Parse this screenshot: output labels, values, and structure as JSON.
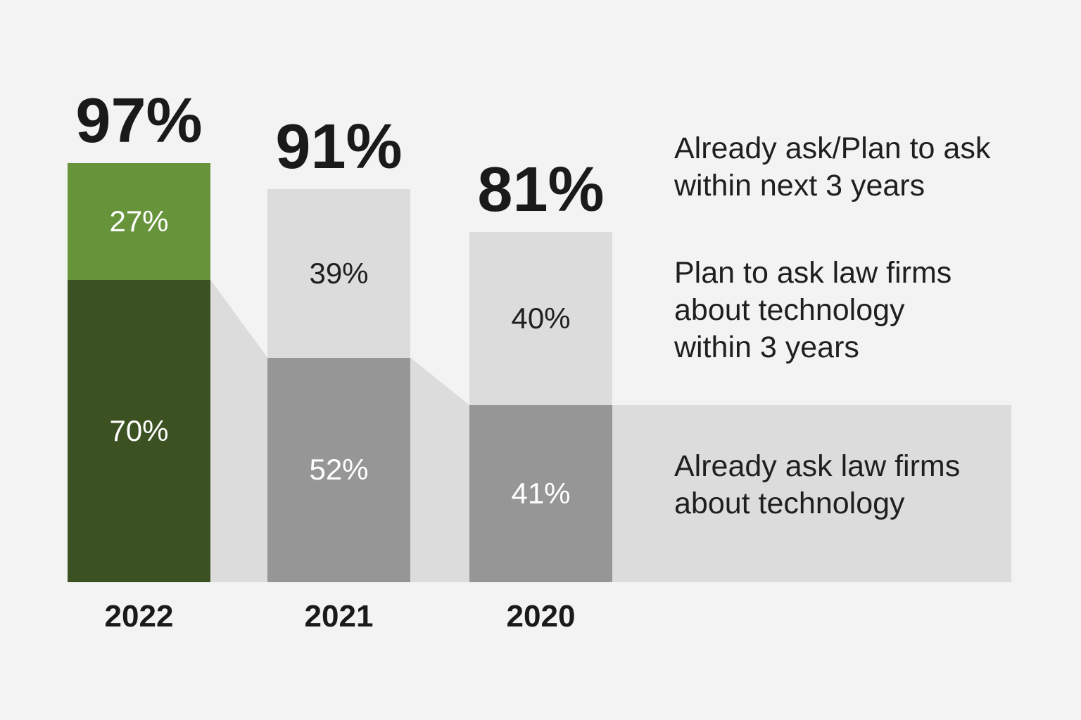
{
  "colors": {
    "background": "#f3f3f3",
    "text_dark": "#1a1a1a",
    "text_white": "#ffffff",
    "highlight_top": "#67943a",
    "highlight_bottom": "#3b5122",
    "default_top": "#dcdcdc",
    "default_bottom": "#969696",
    "ribbon": "#dcdcdc"
  },
  "chart_data": {
    "type": "bar",
    "stacked": true,
    "value_unit": "percent",
    "categories": [
      "2022",
      "2021",
      "2020"
    ],
    "series": [
      {
        "name": "Plan to ask law firms about technology within 3 years",
        "values": [
          27,
          39,
          40
        ]
      },
      {
        "name": "Already ask law firms about technology",
        "values": [
          70,
          52,
          41
        ]
      }
    ],
    "totals": {
      "name": "Already ask/Plan to ask within next 3 years",
      "values": [
        97,
        91,
        81
      ]
    },
    "ylim": [
      0,
      100
    ],
    "grid": false,
    "axes_shown": false,
    "legend_position": "right",
    "highlight_category": "2022"
  },
  "labels": {
    "totals": [
      "97%",
      "91%",
      "81%"
    ],
    "segments_top": [
      "27%",
      "39%",
      "40%"
    ],
    "segments_bottom": [
      "70%",
      "52%",
      "41%"
    ],
    "years": [
      "2022",
      "2021",
      "2020"
    ]
  },
  "legend": {
    "total": "Already ask/Plan to ask\nwithin next 3 years",
    "plan": "Plan to ask law firms\nabout technology\nwithin 3 years",
    "already": "Already ask law firms\nabout technology"
  }
}
